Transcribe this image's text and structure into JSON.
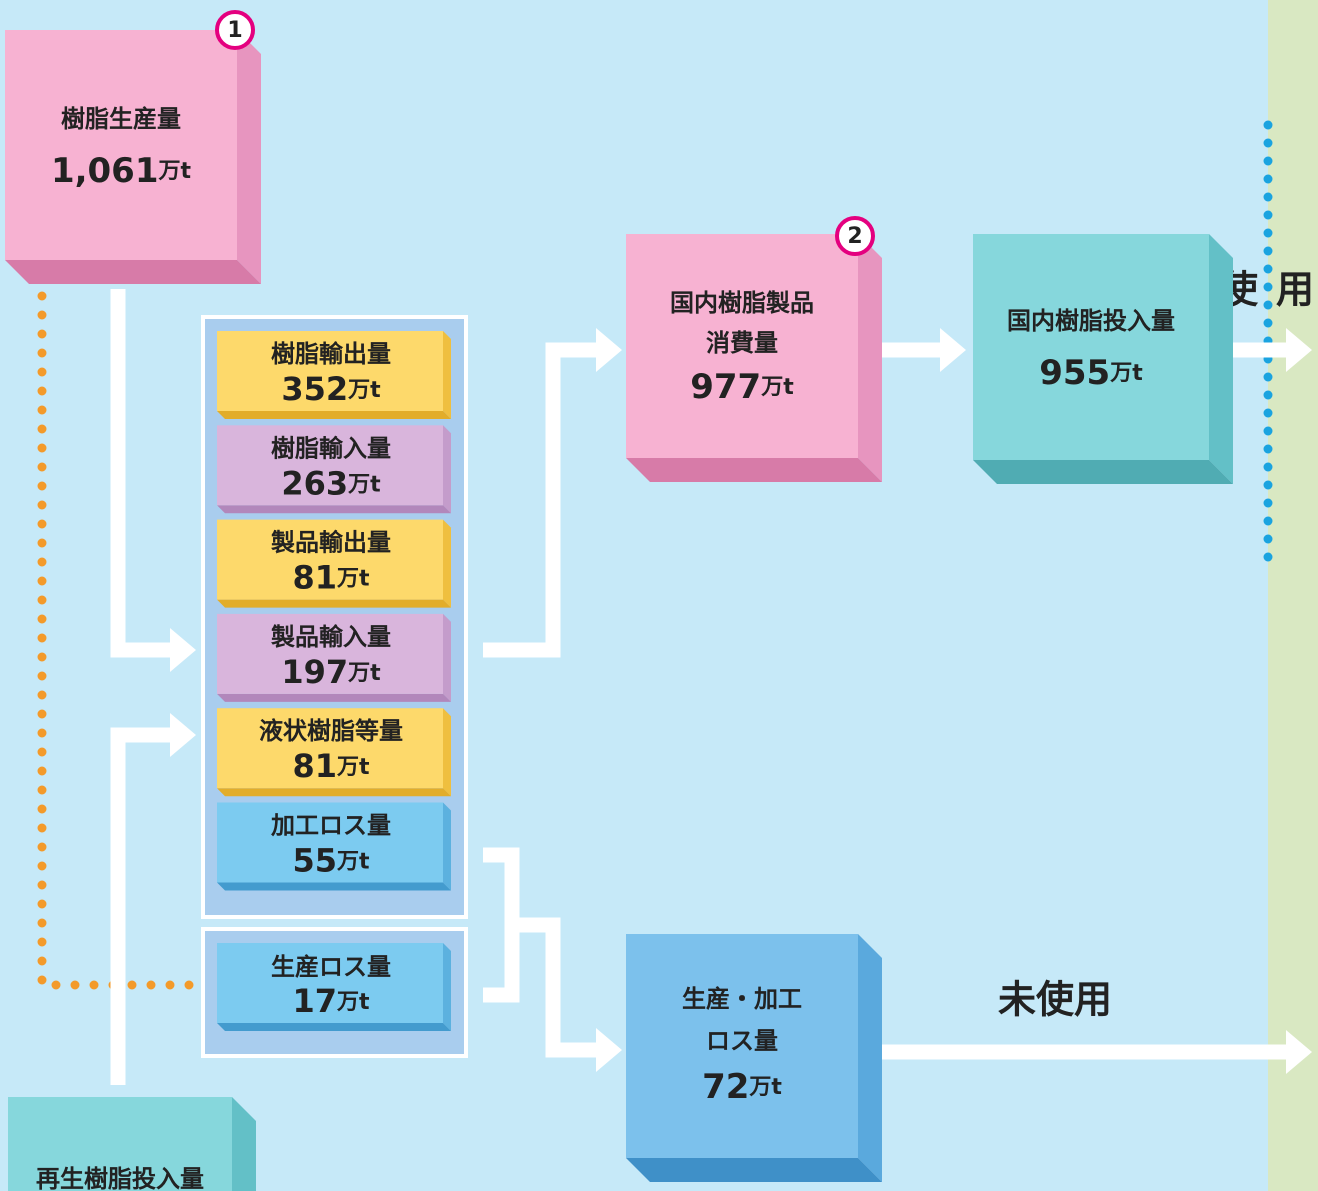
{
  "nodes": [
    {
      "label": "樹脂生産量",
      "value": "1,061",
      "unit": "万t",
      "badge": "1"
    },
    {
      "label": "国内樹脂製品",
      "label2": "消費量",
      "value": "977",
      "unit": "万t",
      "badge": "2"
    },
    {
      "label": "国内樹脂投入量",
      "value": "955",
      "unit": "万t"
    },
    {
      "label": "生産・加工",
      "label2": "ロス量",
      "value": "72",
      "unit": "万t"
    },
    {
      "label": "再生樹脂投入量"
    }
  ],
  "breakdown": [
    {
      "label": "樹脂輸出量",
      "value": "352",
      "unit": "万t"
    },
    {
      "label": "樹脂輸入量",
      "value": "263",
      "unit": "万t"
    },
    {
      "label": "製品輸出量",
      "value": "81",
      "unit": "万t"
    },
    {
      "label": "製品輸入量",
      "value": "197",
      "unit": "万t"
    },
    {
      "label": "液状樹脂等量",
      "value": "81",
      "unit": "万t"
    },
    {
      "label": "加工ロス量",
      "value": "55",
      "unit": "万t"
    }
  ],
  "production_loss": {
    "label": "生産ロス量",
    "value": "17",
    "unit": "万t"
  },
  "flows": {
    "used": "使用",
    "unused": "未使用"
  }
}
